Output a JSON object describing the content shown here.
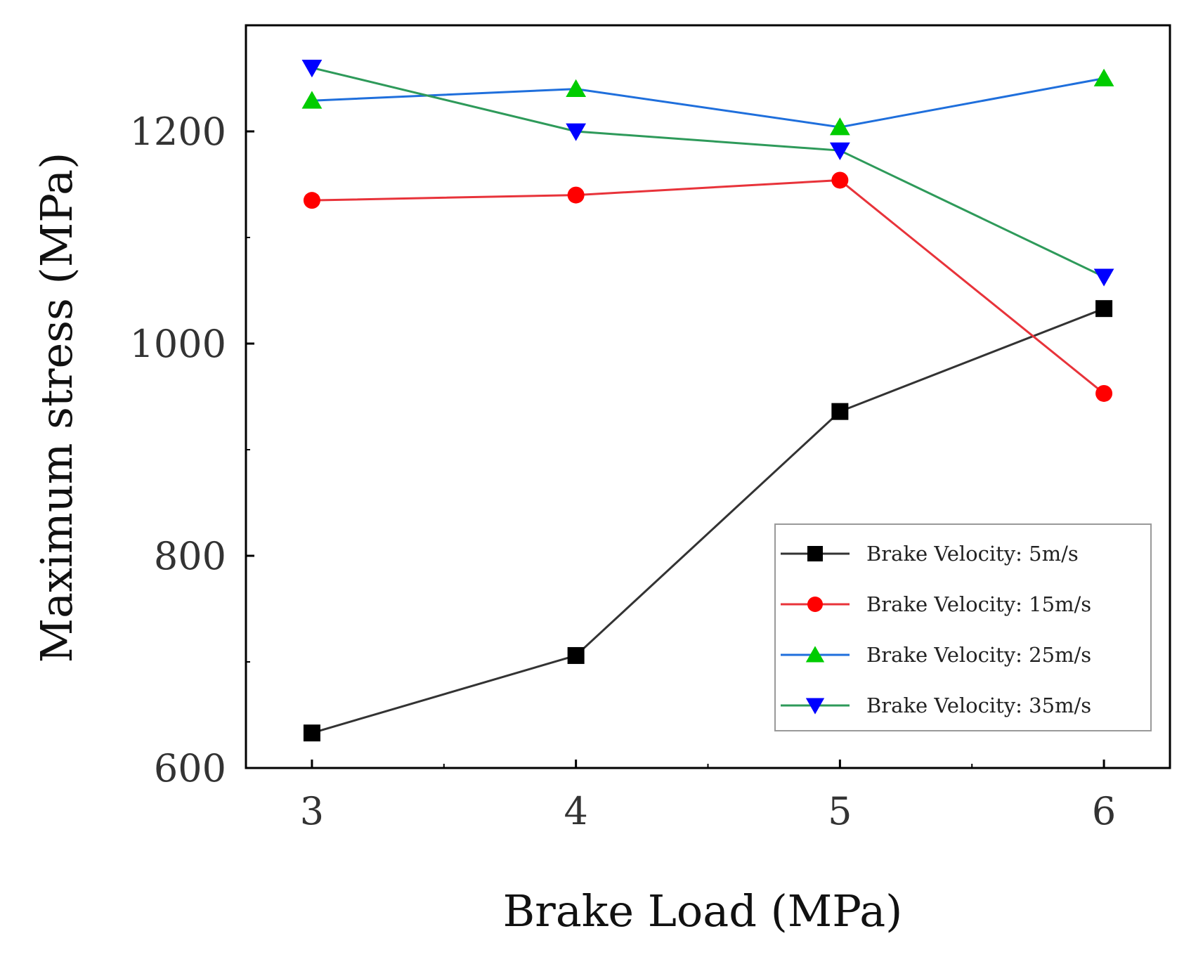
{
  "chart_data": {
    "type": "line",
    "title": "",
    "xlabel": "Brake Load (MPa)",
    "ylabel": "Maximum stress (MPa)",
    "x": [
      3,
      4,
      5,
      6
    ],
    "xticks": [
      "3",
      "4",
      "5",
      "6"
    ],
    "yticks": [
      "600",
      "800",
      "1000",
      "1200"
    ],
    "xlim": [
      2.75,
      6.25
    ],
    "ylim": [
      600,
      1300
    ],
    "grid": false,
    "legend_position": "lower-right",
    "series": [
      {
        "name": "Brake Velocity: 5m/s",
        "marker": "square",
        "color": "#000000",
        "line_color": "#333333",
        "values": [
          633,
          706,
          936,
          1033
        ]
      },
      {
        "name": "Brake Velocity: 15m/s",
        "marker": "circle",
        "color": "#ff0000",
        "line_color": "#e8333a",
        "values": [
          1135,
          1140,
          1154,
          953
        ]
      },
      {
        "name": "Brake Velocity: 25m/s",
        "marker": "triangle-up",
        "color": "#00cc00",
        "line_color": "#1f6fdc",
        "values": [
          1229,
          1240,
          1204,
          1250
        ]
      },
      {
        "name": "Brake Velocity: 35m/s",
        "marker": "triangle-down",
        "color": "#0000ff",
        "line_color": "#2e9a5a",
        "values": [
          1260,
          1200,
          1182,
          1063
        ]
      }
    ]
  }
}
